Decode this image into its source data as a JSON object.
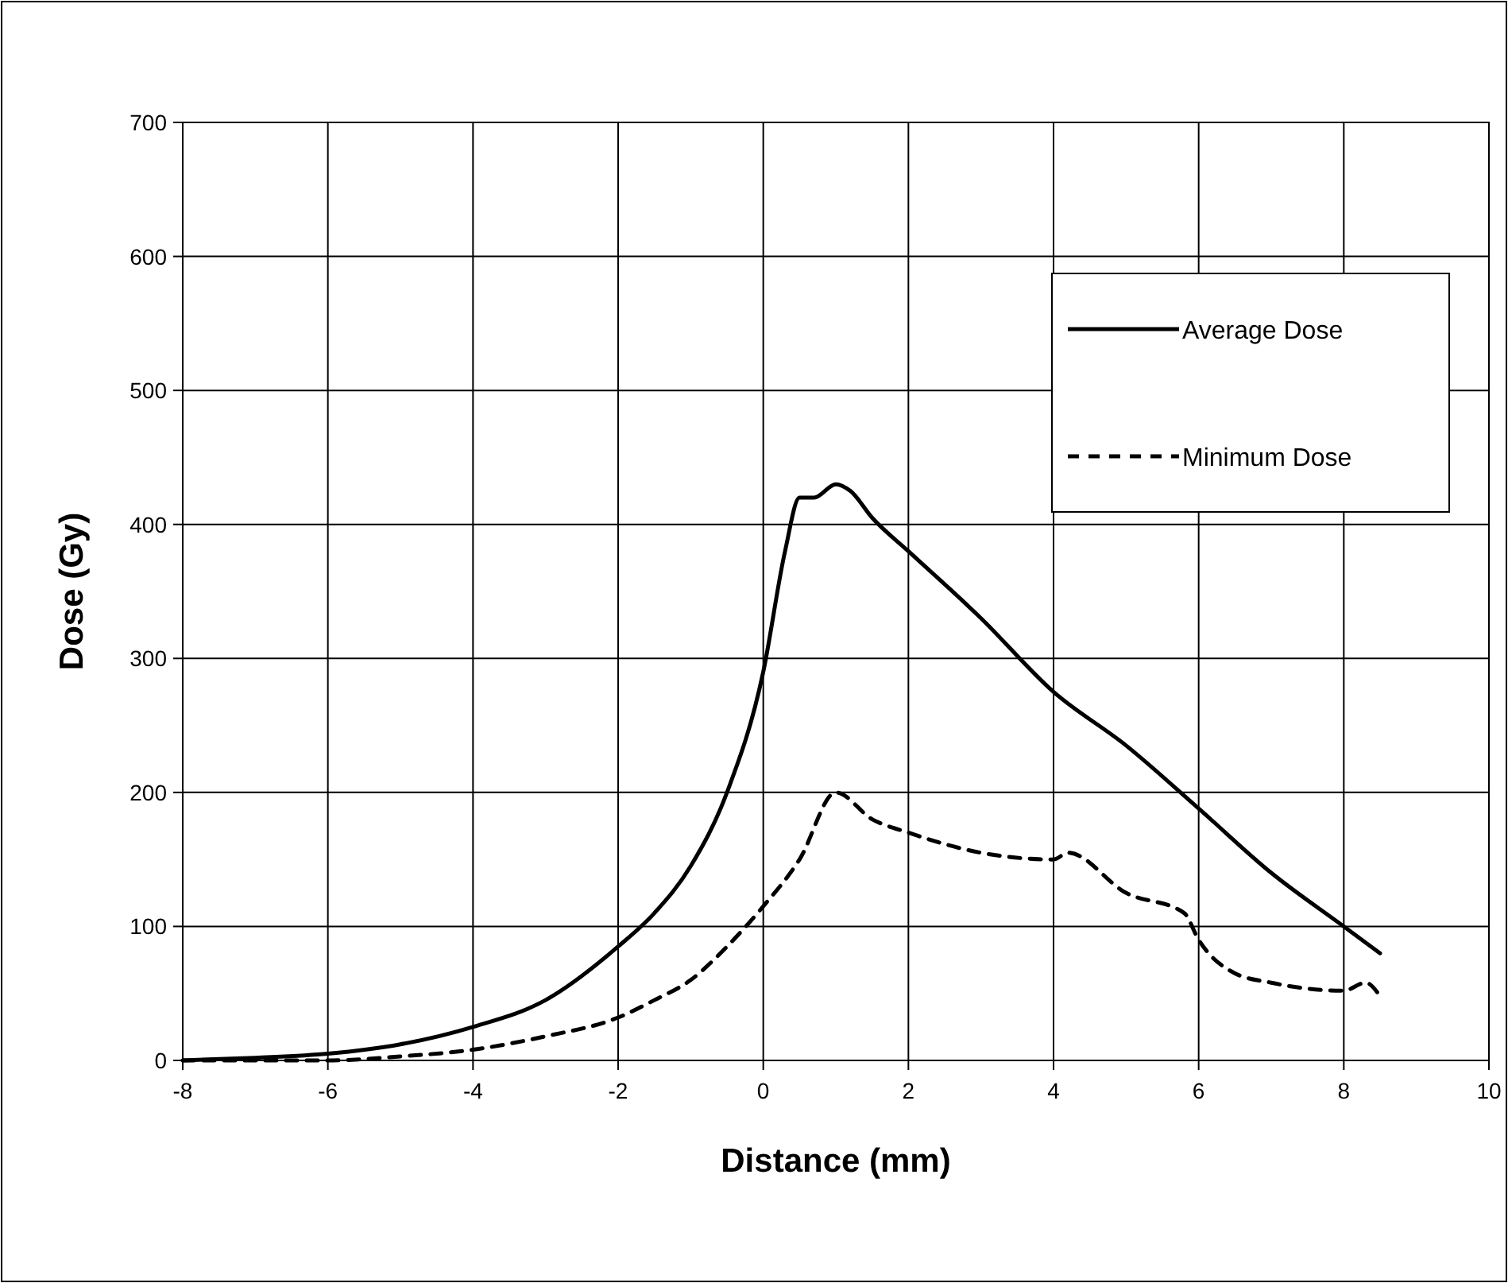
{
  "chart_data": {
    "type": "line",
    "xlabel": "Distance (mm)",
    "ylabel": "Dose (Gy)",
    "xlim": [
      -8,
      10
    ],
    "ylim": [
      0,
      700
    ],
    "xticks": [
      -8,
      -6,
      -4,
      -2,
      0,
      2,
      4,
      6,
      8,
      10
    ],
    "yticks": [
      0,
      100,
      200,
      300,
      400,
      500,
      600,
      700
    ],
    "grid": true,
    "legend": "top right",
    "marker": "none",
    "series": [
      {
        "name": "Average Dose",
        "color": "#000000",
        "line_style": "solid",
        "x": [
          -8,
          -7,
          -6,
          -5,
          -4,
          -3,
          -2,
          -1.5,
          -1,
          -0.5,
          0,
          0.3,
          0.5,
          0.7,
          1,
          1.2,
          1.5,
          2,
          3,
          4,
          5,
          6,
          7,
          8,
          8.5
        ],
        "values": [
          0,
          2,
          5,
          12,
          25,
          45,
          85,
          110,
          145,
          200,
          290,
          380,
          420,
          420,
          430,
          425,
          405,
          380,
          330,
          275,
          235,
          188,
          140,
          100,
          80
        ]
      },
      {
        "name": "Minimum Dose",
        "color": "#000000",
        "line_style": "dashed",
        "x": [
          -8,
          -7,
          -6,
          -5,
          -4,
          -3,
          -2,
          -1.5,
          -1,
          -0.5,
          0,
          0.5,
          1,
          1.5,
          2,
          3,
          4,
          4.2,
          5,
          5.8,
          6,
          6.5,
          7,
          8,
          8.3,
          8.5
        ],
        "values": [
          0,
          0,
          0,
          3,
          8,
          18,
          32,
          45,
          60,
          85,
          115,
          150,
          200,
          180,
          170,
          155,
          150,
          155,
          125,
          110,
          90,
          65,
          58,
          52,
          58,
          48
        ]
      }
    ]
  }
}
